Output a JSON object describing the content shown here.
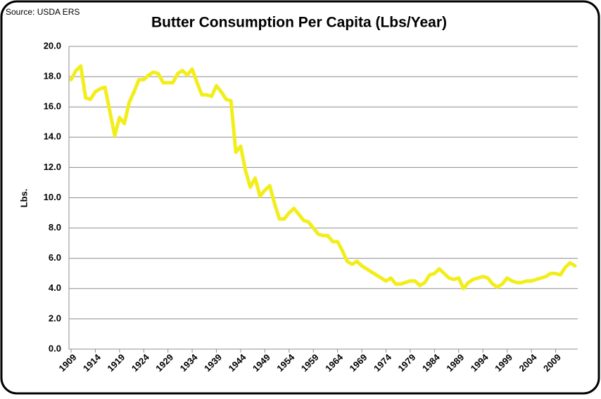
{
  "chart_data": {
    "type": "line",
    "source": "Source:  USDA ERS",
    "title": "Butter Consumption Per Capita (Lbs/Year)",
    "y_label": "Lbs.",
    "color": "#f2ee1c",
    "grid": true,
    "x": [
      1909,
      1910,
      1911,
      1912,
      1913,
      1914,
      1915,
      1916,
      1917,
      1918,
      1919,
      1920,
      1921,
      1922,
      1923,
      1924,
      1925,
      1926,
      1927,
      1928,
      1929,
      1930,
      1931,
      1932,
      1933,
      1934,
      1935,
      1936,
      1937,
      1938,
      1939,
      1940,
      1941,
      1942,
      1943,
      1944,
      1945,
      1946,
      1947,
      1948,
      1949,
      1950,
      1951,
      1952,
      1953,
      1954,
      1955,
      1956,
      1957,
      1958,
      1959,
      1960,
      1961,
      1962,
      1963,
      1964,
      1965,
      1966,
      1967,
      1968,
      1969,
      1970,
      1971,
      1972,
      1973,
      1974,
      1975,
      1976,
      1977,
      1978,
      1979,
      1980,
      1981,
      1982,
      1983,
      1984,
      1985,
      1986,
      1987,
      1988,
      1989,
      1990,
      1991,
      1992,
      1993,
      1994,
      1995,
      1996,
      1997,
      1998,
      1999,
      2000,
      2001,
      2002,
      2003,
      2004,
      2005,
      2006,
      2007,
      2008,
      2009,
      2010,
      2011,
      2012,
      2013
    ],
    "values": [
      17.8,
      18.4,
      18.7,
      16.6,
      16.5,
      17.0,
      17.2,
      17.3,
      15.7,
      14.1,
      15.3,
      14.9,
      16.3,
      17.0,
      17.8,
      17.8,
      18.1,
      18.3,
      18.2,
      17.6,
      17.6,
      17.6,
      18.2,
      18.4,
      18.1,
      18.5,
      17.6,
      16.8,
      16.8,
      16.7,
      17.4,
      17.0,
      16.5,
      16.4,
      13.0,
      13.4,
      11.8,
      10.7,
      11.3,
      10.1,
      10.5,
      10.8,
      9.6,
      8.6,
      8.6,
      9.0,
      9.3,
      8.9,
      8.5,
      8.4,
      8.0,
      7.6,
      7.5,
      7.5,
      7.1,
      7.1,
      6.5,
      5.8,
      5.6,
      5.8,
      5.5,
      5.3,
      5.1,
      4.9,
      4.7,
      4.5,
      4.7,
      4.3,
      4.3,
      4.4,
      4.5,
      4.5,
      4.2,
      4.4,
      4.9,
      5.0,
      5.3,
      5.0,
      4.7,
      4.6,
      4.7,
      4.0,
      4.4,
      4.6,
      4.7,
      4.8,
      4.7,
      4.3,
      4.1,
      4.3,
      4.7,
      4.5,
      4.4,
      4.4,
      4.5,
      4.5,
      4.6,
      4.7,
      4.8,
      5.0,
      5.0,
      4.9,
      5.4,
      5.7,
      5.5
    ],
    "xlim": [
      1909,
      2013
    ],
    "xticks": [
      1909,
      1914,
      1919,
      1924,
      1929,
      1934,
      1939,
      1944,
      1949,
      1954,
      1959,
      1964,
      1969,
      1974,
      1979,
      1984,
      1989,
      1994,
      1999,
      2004,
      2009
    ],
    "ylim": [
      0,
      20
    ],
    "yticks": [
      {
        "value": 0,
        "label": "0.0"
      },
      {
        "value": 2,
        "label": "2.0"
      },
      {
        "value": 4,
        "label": "4.0"
      },
      {
        "value": 6,
        "label": "6.0"
      },
      {
        "value": 8,
        "label": "8.0"
      },
      {
        "value": 10,
        "label": "10.0"
      },
      {
        "value": 12,
        "label": "12.0"
      },
      {
        "value": 14,
        "label": "14.0"
      },
      {
        "value": 16,
        "label": "16.0"
      },
      {
        "value": 18,
        "label": "18.0"
      },
      {
        "value": 20,
        "label": "20.0"
      }
    ]
  }
}
